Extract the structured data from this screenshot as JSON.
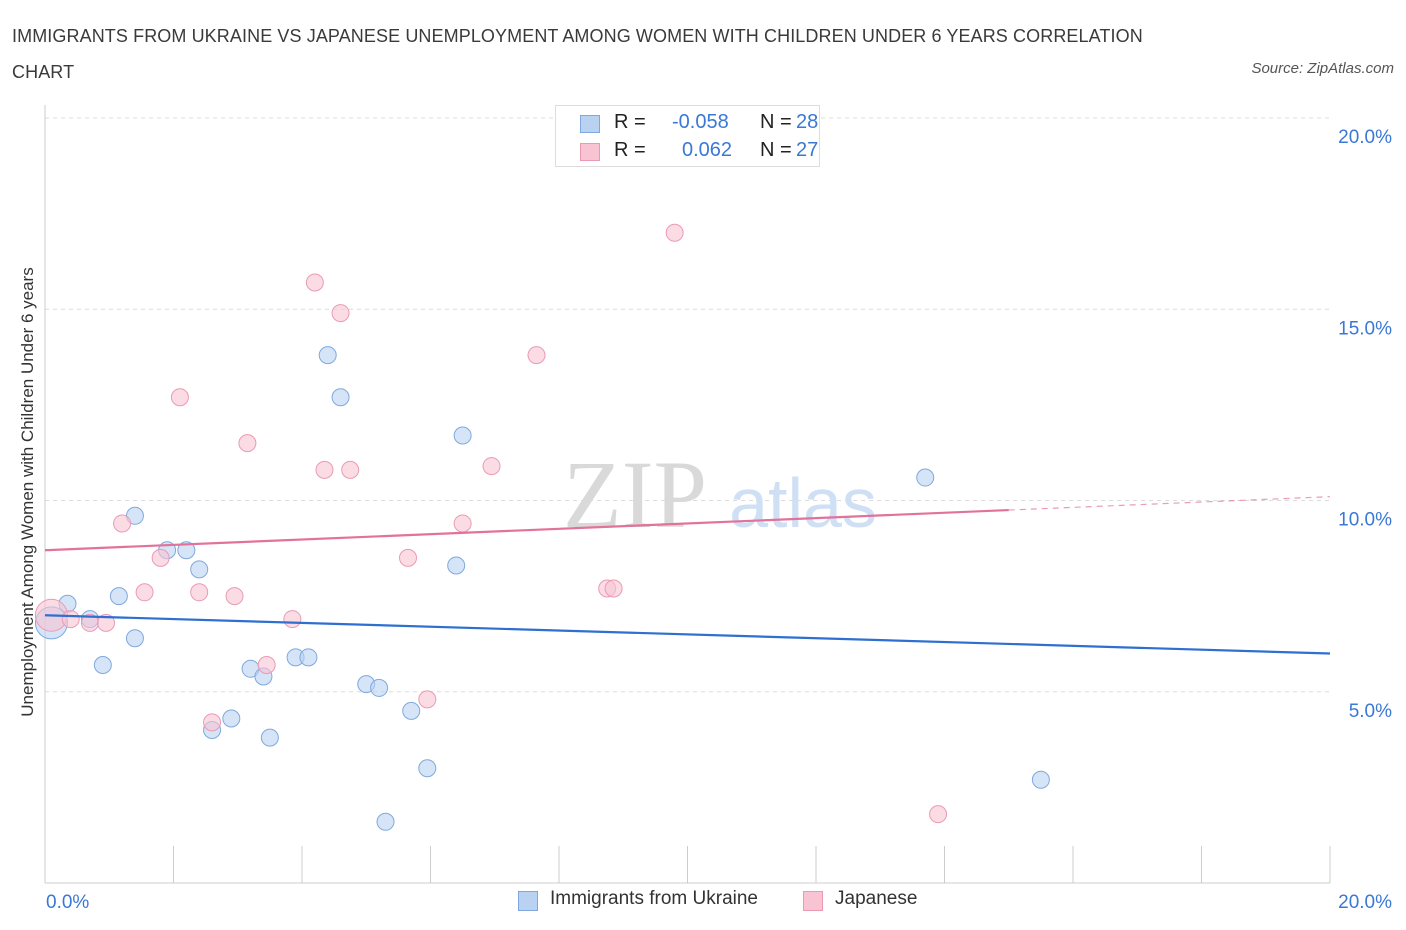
{
  "header": {
    "title": "IMMIGRANTS FROM UKRAINE VS JAPANESE UNEMPLOYMENT AMONG WOMEN WITH CHILDREN UNDER 6 YEARS CORRELATION CHART",
    "source": "Source: ZipAtlas.com"
  },
  "watermark": {
    "zip": "ZIP",
    "atlas": "atlas"
  },
  "legend": {
    "rows": [
      {
        "r_label": "R =",
        "r_value": "-0.058",
        "n_label": "N =",
        "n_value": "28"
      },
      {
        "r_label": "R =",
        "r_value": "0.062",
        "n_label": "N =",
        "n_value": "27"
      }
    ]
  },
  "chart_data": {
    "type": "scatter",
    "title": "IMMIGRANTS FROM UKRAINE VS JAPANESE UNEMPLOYMENT AMONG WOMEN WITH CHILDREN UNDER 6 YEARS CORRELATION CHART",
    "xlabel": "",
    "ylabel": "Unemployment Among Women with Children Under 6 years",
    "xlim": [
      0,
      20
    ],
    "ylim": [
      0,
      20
    ],
    "x_tick_labels": [
      "0.0%",
      "20.0%"
    ],
    "y_ticks": [
      5,
      10,
      15,
      20
    ],
    "y_tick_labels": [
      "5.0%",
      "10.0%",
      "15.0%",
      "20.0%"
    ],
    "grid": true,
    "colors": {
      "ukraine_fill": "#b9d2f2",
      "ukraine_stroke": "#7fa9de",
      "ukraine_line": "#2e6fd0",
      "japanese_fill": "#f8c4d4",
      "japanese_stroke": "#eb9ab4",
      "japanese_line": "#e2729a",
      "tick_label": "#3a78d6"
    },
    "series": [
      {
        "name": "Immigrants from Ukraine",
        "R": -0.058,
        "N": 28,
        "trend": {
          "x0": 0,
          "y0": 7.0,
          "x1": 20,
          "y1": 6.0,
          "solid_until": 20
        },
        "points": [
          {
            "x": 0.1,
            "y": 6.8,
            "big": true
          },
          {
            "x": 0.35,
            "y": 7.3
          },
          {
            "x": 0.7,
            "y": 6.9
          },
          {
            "x": 0.9,
            "y": 5.7
          },
          {
            "x": 1.15,
            "y": 7.5
          },
          {
            "x": 1.4,
            "y": 6.4
          },
          {
            "x": 1.4,
            "y": 9.6
          },
          {
            "x": 1.9,
            "y": 8.7
          },
          {
            "x": 2.2,
            "y": 8.7
          },
          {
            "x": 2.4,
            "y": 8.2
          },
          {
            "x": 2.6,
            "y": 4.0
          },
          {
            "x": 2.9,
            "y": 4.3
          },
          {
            "x": 3.2,
            "y": 5.6
          },
          {
            "x": 3.4,
            "y": 5.4
          },
          {
            "x": 3.5,
            "y": 3.8
          },
          {
            "x": 3.9,
            "y": 5.9
          },
          {
            "x": 4.1,
            "y": 5.9
          },
          {
            "x": 4.4,
            "y": 13.8
          },
          {
            "x": 4.6,
            "y": 12.7
          },
          {
            "x": 5.0,
            "y": 5.2
          },
          {
            "x": 5.2,
            "y": 5.1
          },
          {
            "x": 5.3,
            "y": 1.6
          },
          {
            "x": 5.7,
            "y": 4.5
          },
          {
            "x": 5.95,
            "y": 3.0
          },
          {
            "x": 6.4,
            "y": 8.3
          },
          {
            "x": 6.5,
            "y": 11.7
          },
          {
            "x": 13.7,
            "y": 10.6
          },
          {
            "x": 15.5,
            "y": 2.7
          }
        ]
      },
      {
        "name": "Japanese",
        "R": 0.062,
        "N": 27,
        "trend": {
          "x0": 0,
          "y0": 8.7,
          "x1": 20,
          "y1": 10.1,
          "solid_until": 15.0
        },
        "points": [
          {
            "x": 0.1,
            "y": 7.0,
            "big": true
          },
          {
            "x": 0.4,
            "y": 6.9
          },
          {
            "x": 0.7,
            "y": 6.8
          },
          {
            "x": 0.95,
            "y": 6.8
          },
          {
            "x": 1.2,
            "y": 9.4
          },
          {
            "x": 1.55,
            "y": 7.6
          },
          {
            "x": 1.8,
            "y": 8.5
          },
          {
            "x": 2.1,
            "y": 12.7
          },
          {
            "x": 2.4,
            "y": 7.6
          },
          {
            "x": 2.6,
            "y": 4.2
          },
          {
            "x": 2.95,
            "y": 7.5
          },
          {
            "x": 3.15,
            "y": 11.5
          },
          {
            "x": 3.45,
            "y": 5.7
          },
          {
            "x": 3.85,
            "y": 6.9
          },
          {
            "x": 4.2,
            "y": 15.7
          },
          {
            "x": 4.35,
            "y": 10.8
          },
          {
            "x": 4.6,
            "y": 14.9
          },
          {
            "x": 4.75,
            "y": 10.8
          },
          {
            "x": 5.65,
            "y": 8.5
          },
          {
            "x": 5.95,
            "y": 4.8
          },
          {
            "x": 6.5,
            "y": 9.4
          },
          {
            "x": 6.95,
            "y": 10.9
          },
          {
            "x": 7.65,
            "y": 13.8
          },
          {
            "x": 8.75,
            "y": 7.7
          },
          {
            "x": 8.85,
            "y": 7.7
          },
          {
            "x": 9.8,
            "y": 17.0
          },
          {
            "x": 13.9,
            "y": 1.8
          }
        ]
      }
    ]
  },
  "bottom_legend": [
    {
      "label": "Immigrants from Ukraine"
    },
    {
      "label": "Japanese"
    }
  ]
}
